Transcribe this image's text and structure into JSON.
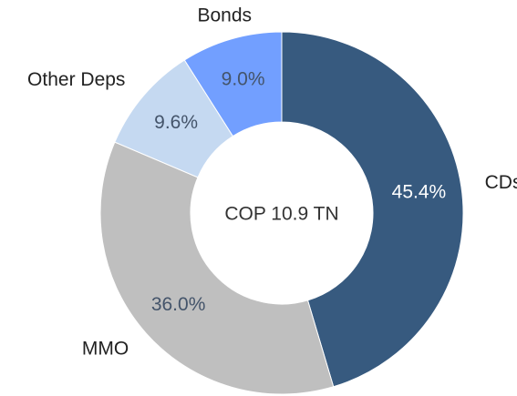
{
  "chart_data": {
    "type": "donut",
    "center_label": "COP 10.9 TN",
    "categories": [
      "CDs",
      "MMO",
      "Other Deps",
      "Bonds"
    ],
    "values": [
      45.4,
      36.0,
      9.6,
      9.0
    ],
    "value_labels": [
      "45.4%",
      "36.0%",
      "9.6%",
      "9.0%"
    ],
    "colors": [
      "#375a7f",
      "#bfbfbf",
      "#c5d9f1",
      "#729fff"
    ]
  }
}
